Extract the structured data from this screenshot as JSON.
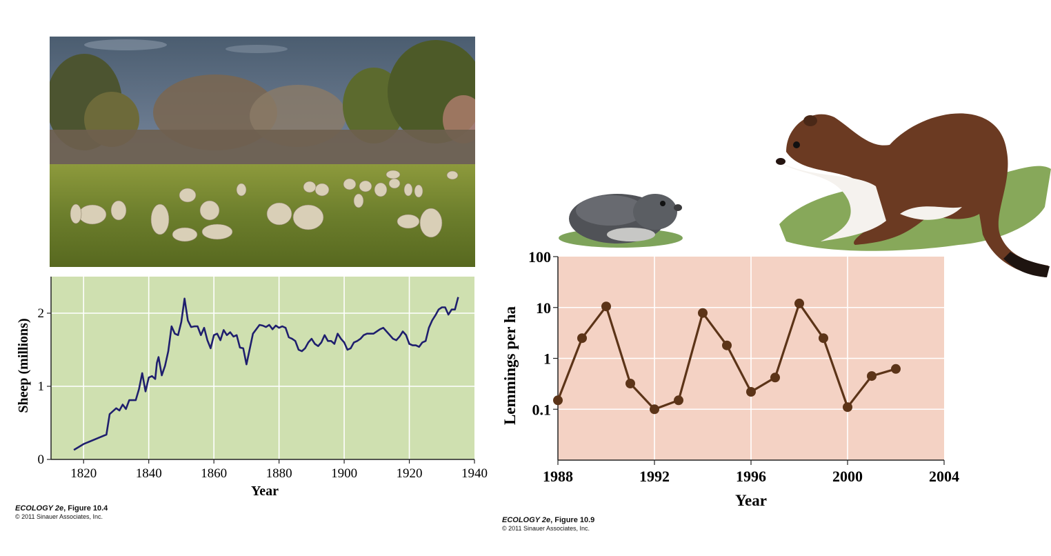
{
  "photo": {
    "subject": "sheep-pasture-photo"
  },
  "chart_data": [
    {
      "type": "line",
      "xlabel": "Year",
      "ylabel": "Sheep (millions)",
      "xlim": [
        1810,
        1940
      ],
      "ylim": [
        0,
        2.5
      ],
      "xticks": [
        1820,
        1840,
        1860,
        1880,
        1900,
        1920,
        1940
      ],
      "yticks": [
        0,
        1,
        2
      ],
      "grid": true,
      "background": "#cfe0b0",
      "line_color": "#1f1f6e",
      "x": [
        1817,
        1820,
        1827,
        1828,
        1830,
        1831,
        1832,
        1833,
        1834,
        1836,
        1837,
        1838,
        1839,
        1840,
        1841,
        1842,
        1842.5,
        1843,
        1844,
        1845,
        1846,
        1847,
        1848,
        1849,
        1850,
        1851,
        1852,
        1853,
        1854,
        1855,
        1856,
        1857,
        1858,
        1859,
        1860,
        1861,
        1862,
        1863,
        1864,
        1865,
        1866,
        1867,
        1868,
        1869,
        1870,
        1872,
        1874,
        1875,
        1876,
        1877,
        1878,
        1879,
        1880,
        1881,
        1882,
        1883,
        1884,
        1885,
        1886,
        1887,
        1888,
        1889,
        1890,
        1891,
        1892,
        1893,
        1894,
        1895,
        1896,
        1897,
        1898,
        1899,
        1900,
        1901,
        1902,
        1903,
        1904,
        1905,
        1906,
        1907,
        1908,
        1909,
        1910,
        1911,
        1912,
        1913,
        1914,
        1915,
        1916,
        1917,
        1918,
        1919,
        1920,
        1921,
        1922,
        1923,
        1924,
        1925,
        1926,
        1927,
        1928,
        1929,
        1930,
        1931,
        1932,
        1933,
        1934,
        1935
      ],
      "y": [
        0.13,
        0.21,
        0.34,
        0.62,
        0.7,
        0.67,
        0.75,
        0.69,
        0.81,
        0.81,
        0.96,
        1.18,
        0.93,
        1.12,
        1.14,
        1.1,
        1.32,
        1.4,
        1.15,
        1.28,
        1.48,
        1.82,
        1.72,
        1.7,
        1.88,
        2.2,
        1.9,
        1.81,
        1.82,
        1.82,
        1.7,
        1.8,
        1.63,
        1.52,
        1.7,
        1.72,
        1.63,
        1.77,
        1.7,
        1.74,
        1.68,
        1.7,
        1.53,
        1.52,
        1.3,
        1.72,
        1.84,
        1.83,
        1.81,
        1.84,
        1.78,
        1.83,
        1.8,
        1.82,
        1.8,
        1.67,
        1.65,
        1.62,
        1.5,
        1.48,
        1.52,
        1.6,
        1.65,
        1.58,
        1.55,
        1.6,
        1.7,
        1.62,
        1.62,
        1.58,
        1.72,
        1.65,
        1.6,
        1.5,
        1.52,
        1.6,
        1.62,
        1.65,
        1.7,
        1.72,
        1.72,
        1.72,
        1.75,
        1.78,
        1.8,
        1.75,
        1.7,
        1.65,
        1.63,
        1.68,
        1.75,
        1.7,
        1.58,
        1.56,
        1.56,
        1.54,
        1.6,
        1.62,
        1.8,
        1.9,
        1.97,
        2.05,
        2.08,
        2.08,
        1.98,
        2.05,
        2.05,
        2.22
      ]
    },
    {
      "type": "line",
      "yscale": "log",
      "xlabel": "Year",
      "ylabel": "Lemmings per ha",
      "xlim": [
        1988,
        2004
      ],
      "ylim": [
        0.01,
        100
      ],
      "xticks": [
        1988,
        1992,
        1996,
        2000,
        2004
      ],
      "yticks": [
        0.1,
        1,
        10,
        100
      ],
      "ytick_labels": [
        "0.1",
        "1",
        "10",
        "100"
      ],
      "grid": true,
      "background": "#f4d2c4",
      "line_color": "#5c3418",
      "markers": true,
      "x": [
        1988,
        1989,
        1990,
        1991,
        1992,
        1993,
        1994,
        1995,
        1996,
        1997,
        1998,
        1999,
        2000,
        2001,
        2002
      ],
      "y": [
        0.15,
        2.5,
        10.5,
        0.32,
        0.1,
        0.15,
        7.8,
        1.8,
        0.22,
        0.42,
        12,
        2.5,
        0.11,
        0.45,
        0.62
      ]
    }
  ],
  "illustrations": {
    "left": "lemming-illustration",
    "right": "stoat-illustration"
  },
  "credits": [
    {
      "title": "ECOLOGY 2e",
      "figure": ", Figure 10.4",
      "copyright": "© 2011 Sinauer Associates, Inc."
    },
    {
      "title": "ECOLOGY 2e",
      "figure": ", Figure 10.9",
      "copyright": "© 2011 Sinauer Associates, Inc."
    }
  ]
}
